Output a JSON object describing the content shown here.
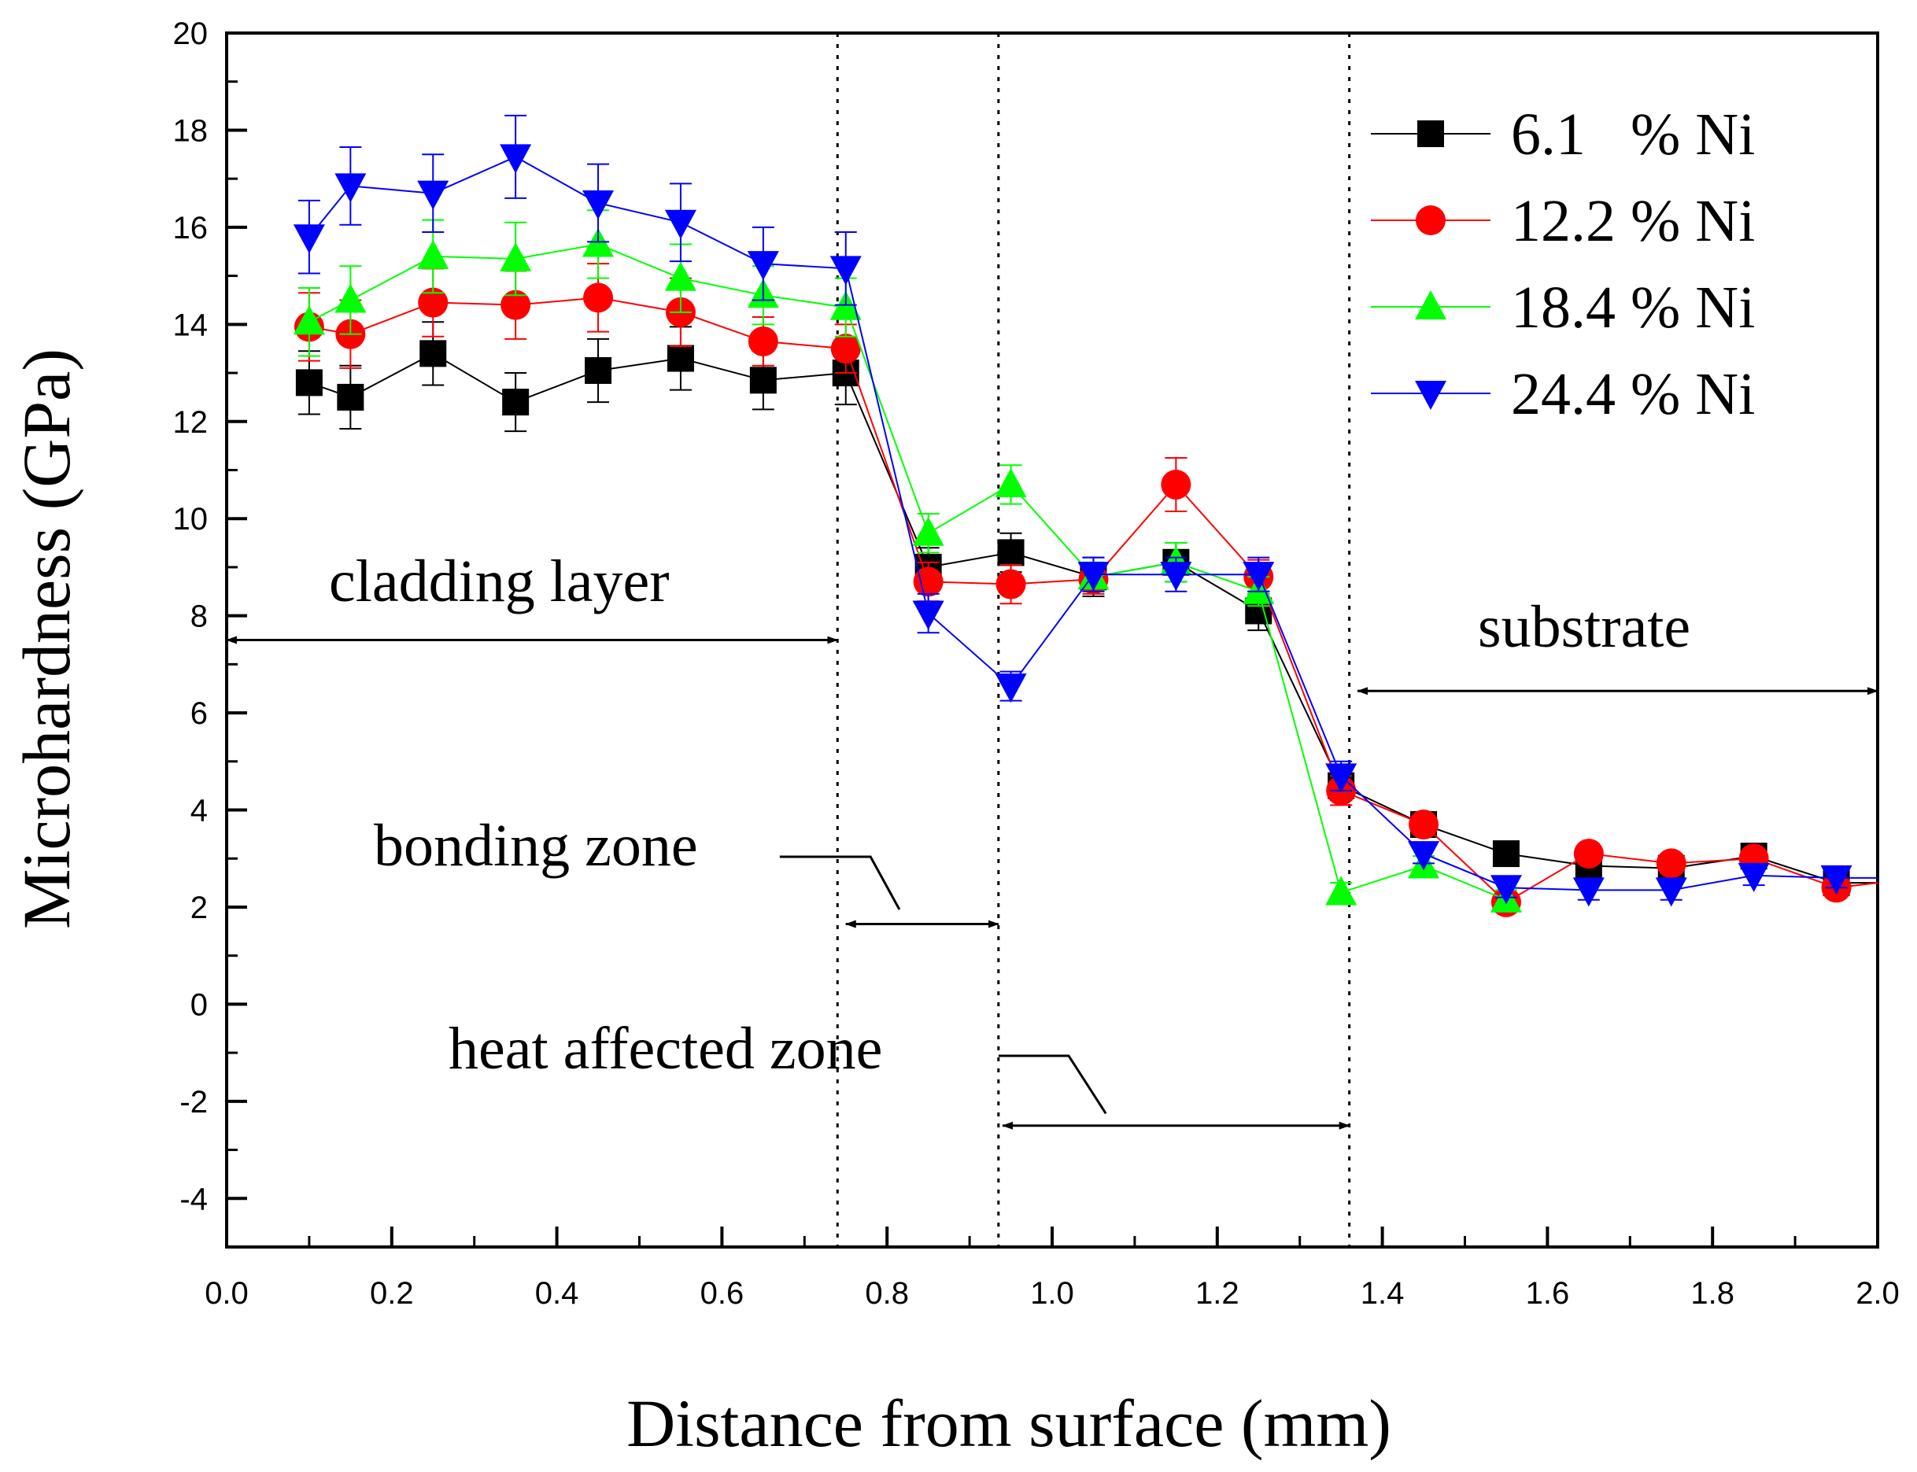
{
  "chart_data": {
    "type": "line",
    "title": "",
    "xlabel": "Distance from surface (mm)",
    "ylabel": "Microhardness (GPa)",
    "xlim": [
      0.0,
      2.0
    ],
    "ylim": [
      -5,
      20
    ],
    "xticks": [
      "0.0",
      "0.2",
      "0.4",
      "0.6",
      "0.8",
      "1.0",
      "1.2",
      "1.4",
      "1.6",
      "1.8",
      "2.0"
    ],
    "yticks": [
      "-4",
      "-2",
      "0",
      "2",
      "4",
      "6",
      "8",
      "10",
      "12",
      "14",
      "16",
      "18",
      "20"
    ],
    "grid": false,
    "legend_position": "top-right",
    "series": [
      {
        "name": "6.1   % Ni",
        "color": "#000000",
        "marker": "square",
        "x": [
          0.1,
          0.15,
          0.25,
          0.35,
          0.45,
          0.55,
          0.65,
          0.75,
          0.85,
          0.95,
          1.05,
          1.15,
          1.25,
          1.35,
          1.45,
          1.55,
          1.65,
          1.75,
          1.85,
          1.95,
          2.0
        ],
        "y": [
          12.8,
          12.5,
          13.4,
          12.4,
          13.05,
          13.3,
          12.85,
          13.0,
          9.0,
          9.3,
          8.8,
          9.1,
          8.1,
          4.5,
          3.7,
          3.1,
          2.85,
          2.8,
          3.05,
          2.5,
          2.5
        ],
        "error": [
          0.65,
          0.65,
          0.65,
          0.6,
          0.65,
          0.65,
          0.6,
          0.65,
          0.4,
          0.4,
          0.4,
          0.4,
          0.4,
          0.3,
          0.2,
          0.2,
          0.2,
          0.2,
          0.2,
          0.2,
          0.2
        ]
      },
      {
        "name": "12.2 % Ni",
        "color": "#ff0000",
        "marker": "circle",
        "x": [
          0.1,
          0.15,
          0.25,
          0.35,
          0.45,
          0.55,
          0.65,
          0.75,
          0.85,
          0.95,
          1.05,
          1.15,
          1.25,
          1.35,
          1.45,
          1.55,
          1.65,
          1.75,
          1.85,
          1.95,
          2.0
        ],
        "y": [
          13.95,
          13.8,
          14.45,
          14.4,
          14.55,
          14.25,
          13.65,
          13.5,
          8.7,
          8.65,
          8.75,
          10.7,
          8.8,
          4.4,
          3.7,
          2.1,
          3.1,
          2.9,
          3.0,
          2.4,
          2.5
        ],
        "error": [
          0.7,
          0.7,
          0.7,
          0.7,
          0.7,
          0.7,
          0.5,
          0.5,
          0.4,
          0.4,
          0.3,
          0.55,
          0.35,
          0.3,
          0.2,
          0.2,
          0.2,
          0.2,
          0.2,
          0.2,
          0.2
        ]
      },
      {
        "name": "18.4 % Ni",
        "color": "#00ff00",
        "marker": "triangle-up",
        "x": [
          0.1,
          0.15,
          0.25,
          0.35,
          0.45,
          0.55,
          0.65,
          0.75,
          0.85,
          0.95,
          1.05,
          1.15,
          1.25,
          1.35,
          1.45,
          1.55
        ],
        "y": [
          14.05,
          14.5,
          15.4,
          15.35,
          15.65,
          14.95,
          14.6,
          14.35,
          9.7,
          10.7,
          8.8,
          9.1,
          8.5,
          2.3,
          2.85,
          2.15
        ],
        "error": [
          0.7,
          0.7,
          0.75,
          0.75,
          0.7,
          0.7,
          0.6,
          0.6,
          0.4,
          0.4,
          0.3,
          0.4,
          0.3,
          0.2,
          0.2,
          0.2
        ]
      },
      {
        "name": "24.4 % Ni",
        "color": "#0000ff",
        "marker": "triangle-down",
        "x": [
          0.1,
          0.15,
          0.25,
          0.35,
          0.45,
          0.55,
          0.65,
          0.75,
          0.85,
          0.95,
          1.05,
          1.15,
          1.25,
          1.35,
          1.45,
          1.55,
          1.65,
          1.75,
          1.85,
          1.95,
          2.0
        ],
        "y": [
          15.8,
          16.85,
          16.7,
          17.45,
          16.5,
          16.1,
          15.25,
          15.15,
          8.05,
          6.55,
          8.85,
          8.85,
          8.85,
          4.7,
          3.1,
          2.4,
          2.35,
          2.35,
          2.65,
          2.6,
          2.6
        ],
        "error": [
          0.75,
          0.8,
          0.8,
          0.85,
          0.8,
          0.8,
          0.75,
          0.75,
          0.4,
          0.3,
          0.35,
          0.35,
          0.35,
          0.3,
          0.2,
          0.2,
          0.2,
          0.2,
          0.2,
          0.2,
          0.2
        ]
      }
    ],
    "zone_boundaries_x": [
      0.74,
      0.935,
      1.36
    ],
    "annotations": [
      {
        "text": "cladding layer",
        "arrow_x": [
          0.0,
          0.74
        ],
        "arrow_y": 7.5
      },
      {
        "text": "bonding zone",
        "arrow_x": [
          0.75,
          0.935
        ],
        "arrow_y": 1.65
      },
      {
        "text": "heat affected zone",
        "arrow_x": [
          0.94,
          1.36
        ],
        "arrow_y": -2.5
      },
      {
        "text": "substrate",
        "arrow_x": [
          1.37,
          2.0
        ],
        "arrow_y": 6.45
      }
    ]
  }
}
